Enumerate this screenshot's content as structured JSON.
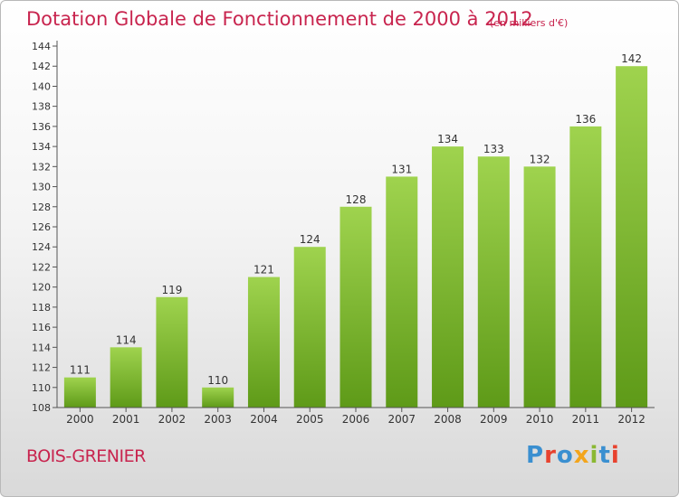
{
  "title": "Dotation Globale de Fonctionnement de 2000 à 2012",
  "unit_note": "(en milliers d'€)",
  "commune": "BOIS-GRENIER",
  "logo": {
    "text": "Proxiti",
    "letter_colors": [
      "#3a8fd0",
      "#e8422e",
      "#3a8fd0",
      "#f3a51c",
      "#8ab832",
      "#3a8fd0",
      "#e8422e"
    ]
  },
  "colors": {
    "title": "#c8244e",
    "bar_top": "#9fd34e",
    "bar_bottom": "#5e9a18",
    "axis": "#555555"
  },
  "chart_data": {
    "type": "bar",
    "title": "Dotation Globale de Fonctionnement de 2000 à 2012",
    "xlabel": "",
    "ylabel": "",
    "categories": [
      "2000",
      "2001",
      "2002",
      "2003",
      "2004",
      "2005",
      "2006",
      "2007",
      "2008",
      "2009",
      "2010",
      "2011",
      "2012"
    ],
    "values": [
      111,
      114,
      119,
      110,
      121,
      124,
      128,
      131,
      134,
      133,
      132,
      136,
      142
    ],
    "ylim": [
      108,
      144
    ],
    "yticks": [
      108,
      110,
      112,
      114,
      116,
      118,
      120,
      122,
      124,
      126,
      128,
      130,
      132,
      134,
      136,
      138,
      140,
      142,
      144
    ],
    "grid": false,
    "legend": "none"
  }
}
